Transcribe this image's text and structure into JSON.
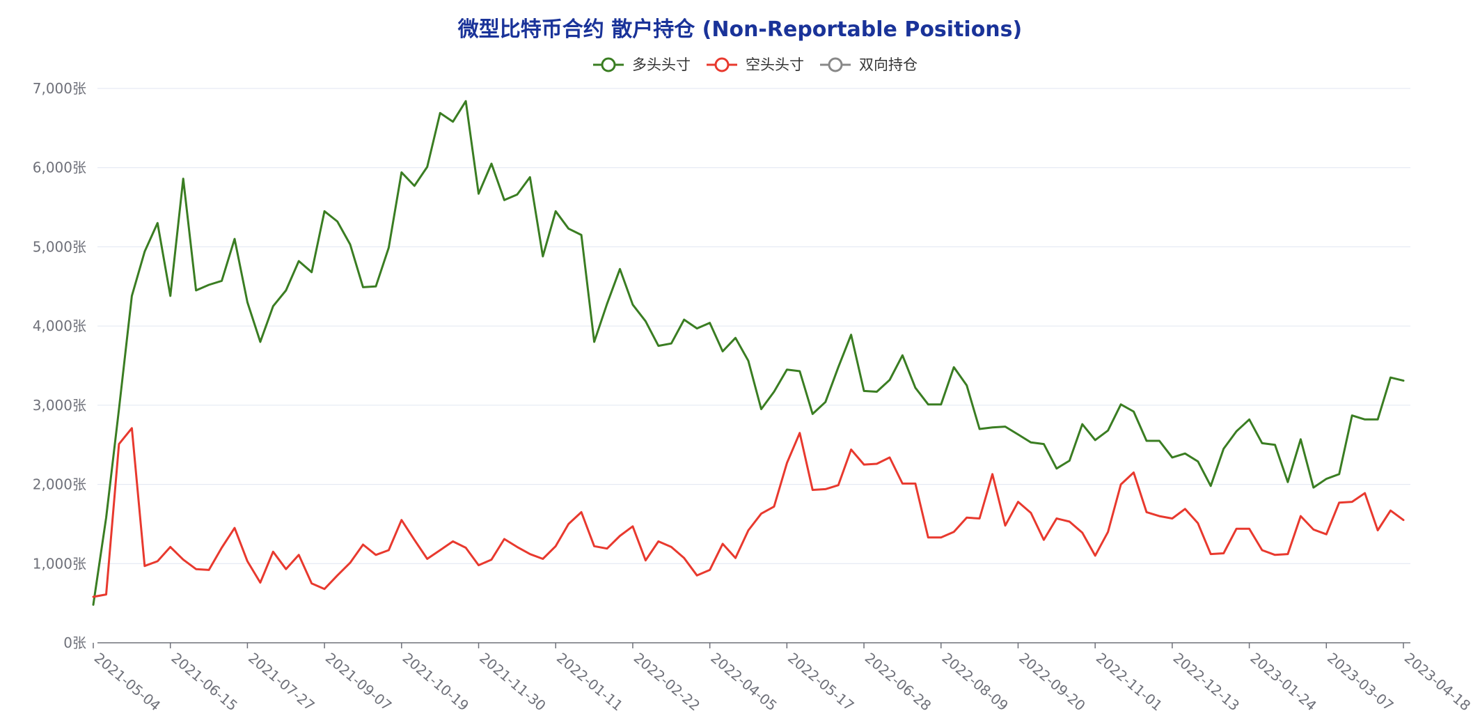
{
  "chart_data": {
    "type": "line",
    "title": "微型比特币合约 散户持仓 (Non-Reportable Positions)",
    "title_color": "#1a3399",
    "y_unit": "张",
    "ylim": [
      0,
      7000
    ],
    "y_ticks": [
      0,
      1000,
      2000,
      3000,
      4000,
      5000,
      6000,
      7000
    ],
    "y_tick_labels": [
      "0张",
      "1,000张",
      "2,000张",
      "3,000张",
      "4,000张",
      "5,000张",
      "6,000张",
      "7,000张"
    ],
    "grid": "horizontal",
    "legend_position": "top-center",
    "x_tick_labels": [
      "2021-05-04",
      "2021-06-15",
      "2021-07-27",
      "2021-09-07",
      "2021-10-19",
      "2021-11-30",
      "2022-01-11",
      "2022-02-22",
      "2022-04-05",
      "2022-05-17",
      "2022-06-28",
      "2022-08-09",
      "2022-09-20",
      "2022-11-01",
      "2022-12-13",
      "2023-01-24",
      "2023-03-07",
      "2023-04-18"
    ],
    "weeks_per_tick": 6,
    "series": [
      {
        "name": "多头头寸",
        "color": "#3a7d22",
        "values": [
          480,
          1580,
          2950,
          4380,
          4940,
          5300,
          4380,
          5860,
          4450,
          4520,
          4570,
          5100,
          4300,
          3800,
          4250,
          4450,
          4820,
          4680,
          5450,
          5320,
          5030,
          4490,
          4500,
          4990,
          5940,
          5770,
          6010,
          6690,
          6580,
          6840,
          5670,
          6050,
          5590,
          5660,
          5880,
          4880,
          5450,
          5230,
          5150,
          3800,
          4280,
          4720,
          4270,
          4060,
          3750,
          3780,
          4080,
          3970,
          4040,
          3680,
          3850,
          3560,
          2950,
          3170,
          3450,
          3430,
          2890,
          3040,
          3480,
          3890,
          3180,
          3170,
          3320,
          3630,
          3220,
          3010,
          3010,
          3480,
          3250,
          2700,
          2720,
          2730,
          2630,
          2530,
          2510,
          2200,
          2300,
          2760,
          2560,
          2680,
          3010,
          2920,
          2550,
          2550,
          2340,
          2390,
          2290,
          1980,
          2450,
          2670,
          2820,
          2520,
          2500,
          2030,
          2570,
          1960,
          2070,
          2130,
          2870,
          2820,
          2820,
          3350,
          3310
        ]
      },
      {
        "name": "空头头寸",
        "color": "#e8392e",
        "values": [
          580,
          610,
          2510,
          2710,
          970,
          1030,
          1210,
          1050,
          930,
          920,
          1200,
          1450,
          1030,
          760,
          1150,
          930,
          1110,
          750,
          680,
          850,
          1010,
          1240,
          1110,
          1170,
          1550,
          1300,
          1060,
          1170,
          1280,
          1200,
          980,
          1050,
          1310,
          1210,
          1120,
          1060,
          1220,
          1500,
          1650,
          1220,
          1190,
          1350,
          1470,
          1040,
          1280,
          1210,
          1070,
          850,
          920,
          1250,
          1070,
          1420,
          1630,
          1720,
          2270,
          2650,
          1930,
          1940,
          1990,
          2440,
          2250,
          2260,
          2340,
          2010,
          2010,
          1330,
          1330,
          1400,
          1580,
          1570,
          2130,
          1480,
          1780,
          1640,
          1300,
          1570,
          1530,
          1390,
          1100,
          1400,
          2000,
          2150,
          1650,
          1600,
          1570,
          1690,
          1510,
          1120,
          1130,
          1440,
          1440,
          1170,
          1110,
          1120,
          1600,
          1430,
          1370,
          1770,
          1780,
          1890,
          1420,
          1670,
          1550
        ]
      },
      {
        "name": "双向持仓",
        "color": "#888888",
        "values": []
      }
    ]
  }
}
